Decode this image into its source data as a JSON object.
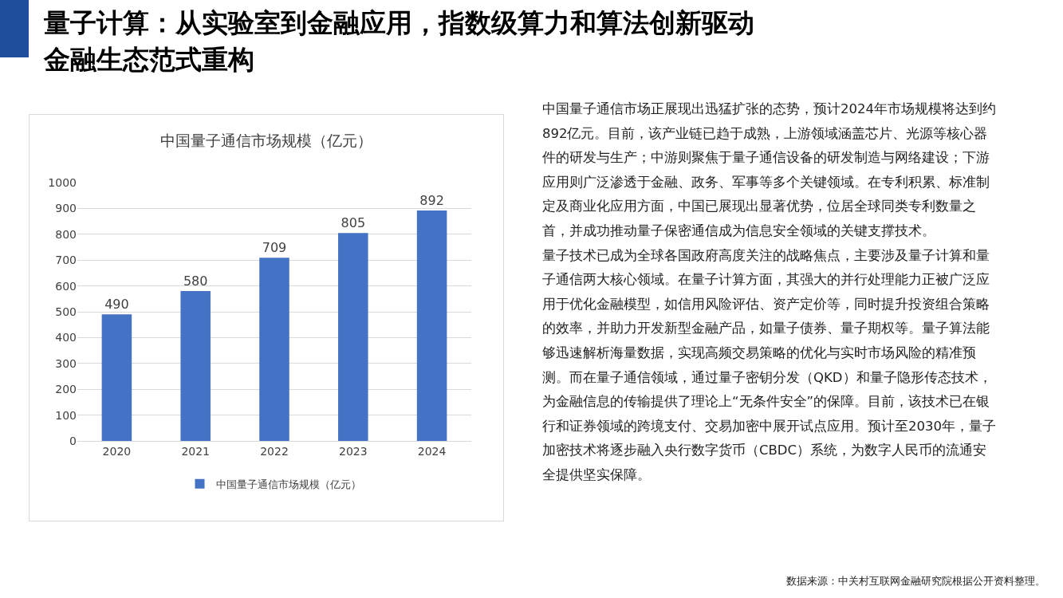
{
  "chart_data": {
    "type": "bar",
    "title": "中国量子通信市场规模（亿元）",
    "categories": [
      "2020",
      "2021",
      "2022",
      "2023",
      "2024"
    ],
    "series": [
      {
        "name": "中国量子通信市场规模（亿元）",
        "color": "#4472c4",
        "values": [
          490,
          580,
          709,
          805,
          892
        ]
      }
    ],
    "ylim": [
      0,
      1000
    ],
    "yticks": [
      0,
      100,
      200,
      300,
      400,
      500,
      600,
      700,
      800,
      900,
      1000
    ],
    "grid": "y",
    "legend": "bottom",
    "data_labels": true,
    "annotations": [
      "量子计算：从实验室到金融应用，指数级算力和算法创新驱动金融生态范式重构",
      "中国量子通信市场正展现出迅猛扩张的态势，预计2024年市场规模将达到约892亿元。目前，该产业链已趋于成熟，上游领域涵盖芯片、光源等核心器件的研发与生产；中游则聚焦于量子通信设备的研发制造与网络建设；下游应用则广泛渗透于金融、政务、军事等多个关键领域。在专利积累、标准制定及商业化应用方面，中国已展现出显著优势，位居全球同类专利数量之首，并成功推动量子保密通信成为信息安全领域的关键支撑技术。",
      "量子技术已成为全球各国政府高度关注的战略焦点，主要涉及量子计算和量子通信两大核心领域。在量子计算方面，其强大的并行处理能力正被广泛应用于优化金融模型，如信用风险评估、资产定价等，同时提升投资组合策略的效率，并助力开发新型金融产品，如量子债券、量子期权等。量子算法能够迅速解析海量数据，实现高频交易策略的优化与实时市场风险的精准预测。而在量子通信领域，通过量子密钥分发（QKD）和量子隐形传态技术，为金融信息的传输提供了理论上“无条件安全”的保障。目前，该技术已在银行和证券领域的跨境支付、交易加密中展开试点应用。预计至2030年，量子加密技术将逐步融入央行数字货币（CBDC）系统，为数字人民币的流通安全提供坚实保障。",
      "数据来源：中关村互联网金融研究院根据公开资料整理。"
    ]
  }
}
